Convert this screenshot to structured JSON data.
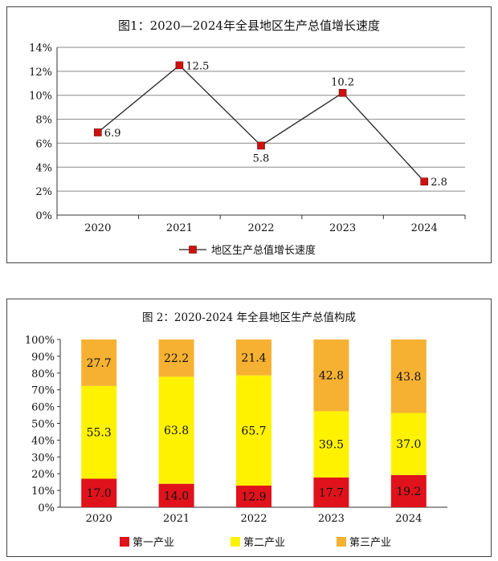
{
  "charts": [
    {
      "title": "图1：2020—2024年全县地区生产总值增长速度",
      "chart_data": {
        "type": "line",
        "categories": [
          "2020",
          "2021",
          "2022",
          "2023",
          "2024"
        ],
        "series": [
          {
            "name": "地区生产总值增长速度",
            "values": [
              6.9,
              12.5,
              5.8,
              10.2,
              2.8
            ],
            "color": "#cc1111"
          }
        ],
        "data_labels": [
          "6.9",
          "12.5",
          "5.8",
          "10.2",
          "2.8"
        ],
        "y_ticks": [
          "0%",
          "2%",
          "4%",
          "6%",
          "8%",
          "10%",
          "12%",
          "14%"
        ],
        "ylim": [
          0,
          14
        ],
        "grid": true,
        "legend": "bottom"
      }
    },
    {
      "title": "图 2：2020-2024 年全县地区生产总值构成",
      "chart_data": {
        "type": "bar",
        "stacked": true,
        "categories": [
          "2020",
          "2021",
          "2022",
          "2023",
          "2024"
        ],
        "series": [
          {
            "name": "第一产业",
            "values": [
              17.0,
              14.0,
              12.9,
              17.7,
              19.2
            ],
            "labels": [
              "17.0",
              "14.0",
              "12.9",
              "17.7",
              "19.2"
            ],
            "color": "#e0121b"
          },
          {
            "name": "第二产业",
            "values": [
              55.3,
              63.8,
              65.7,
              39.5,
              37.0
            ],
            "labels": [
              "55.3",
              "63.8",
              "65.7",
              "39.5",
              "37.0"
            ],
            "color": "#fff200"
          },
          {
            "name": "第三产业",
            "values": [
              27.7,
              22.2,
              21.4,
              42.8,
              43.8
            ],
            "labels": [
              "27.7",
              "22.2",
              "21.4",
              "42.8",
              "43.8"
            ],
            "color": "#f6b133"
          }
        ],
        "y_ticks": [
          "0%",
          "10%",
          "20%",
          "30%",
          "40%",
          "50%",
          "60%",
          "70%",
          "80%",
          "90%",
          "100%"
        ],
        "ylim": [
          0,
          100
        ],
        "grid": false,
        "legend": "bottom"
      }
    }
  ]
}
